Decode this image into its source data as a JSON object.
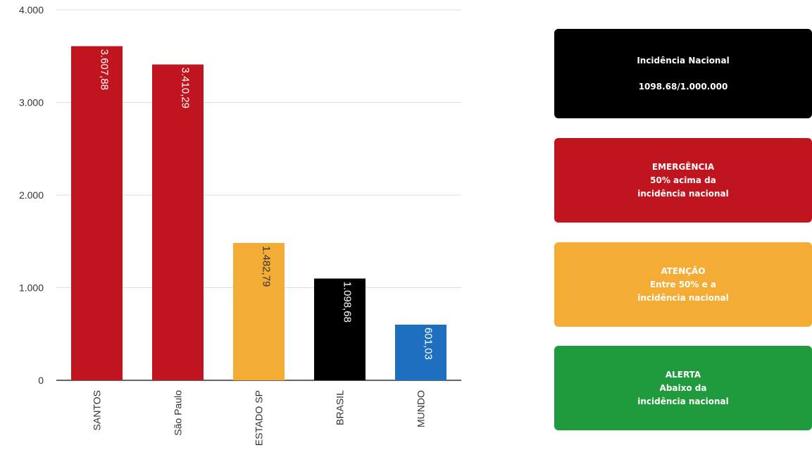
{
  "chart_data": {
    "type": "bar",
    "categories": [
      "SANTOS",
      "São Paulo",
      "ESTADO SP",
      "BRASIL",
      "MUNDO"
    ],
    "values": [
      3607.88,
      3410.29,
      1482.79,
      1098.68,
      601.03
    ],
    "value_labels": [
      "3.607,88",
      "3.410,29",
      "1.482,79",
      "1.098,68",
      "601,03"
    ],
    "bar_colors": [
      "#c0141e",
      "#c0141e",
      "#f5ac35",
      "#000000",
      "#1f6fc1"
    ],
    "y_ticks": [
      0,
      1000,
      2000,
      3000,
      4000
    ],
    "y_tick_labels": [
      "0",
      "1.000",
      "2.000",
      "3.000",
      "4.000"
    ],
    "ylim": [
      0,
      4000
    ],
    "grid": true,
    "title": "",
    "xlabel": "",
    "ylabel": ""
  },
  "cards": {
    "nacional": {
      "title": "Incidência Nacional",
      "value": "1098.68/1.000.000",
      "color": "#000000"
    },
    "emergencia": {
      "lines": [
        "EMERGÊNCIA",
        "50% acima da",
        "incidência nacional"
      ],
      "color": "#c0141e"
    },
    "atencao": {
      "lines": [
        "ATENÇÃO",
        "Entre 50% e a",
        "incidência nacional"
      ],
      "color": "#f5ac35"
    },
    "alerta": {
      "lines": [
        "ALERTA",
        "Abaixo da",
        "incidência nacional"
      ],
      "color": "#1f9a3c"
    }
  }
}
